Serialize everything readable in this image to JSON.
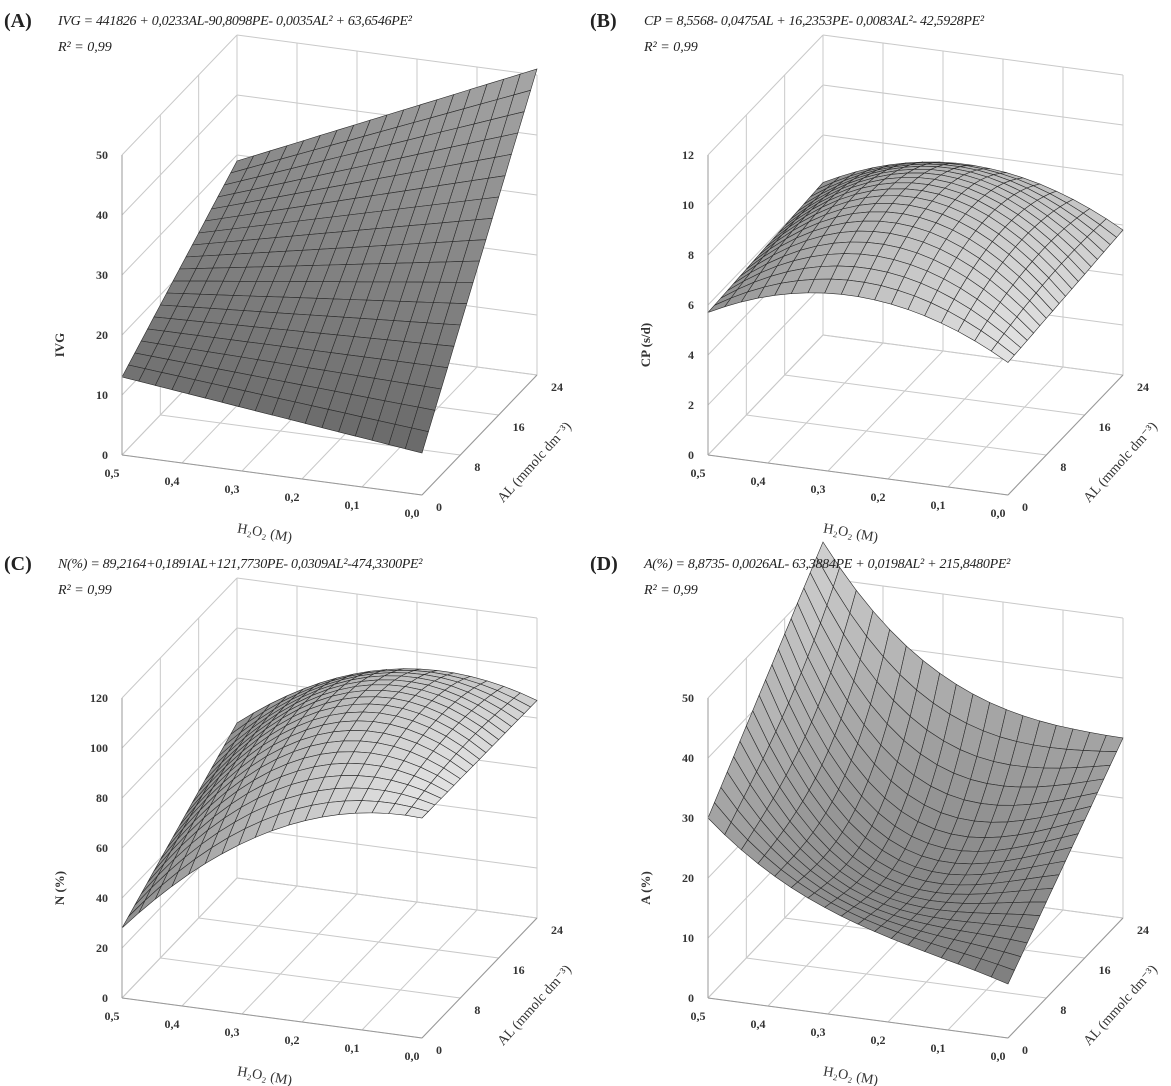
{
  "chart_data": [
    {
      "type": "surface",
      "panel_label": "(A)",
      "equation": "IVG = 441826 + 0,0233AL-90,8098PE- 0,0035AL² + 63,6546PE²",
      "r_squared": "R² = 0,99",
      "zlabel": "IVG",
      "xlabel": "H₂O₂ (M)",
      "ylabel": "AL (mmolc dm⁻³)",
      "x_ticks": [
        "0,5",
        "0,4",
        "0,3",
        "0,2",
        "0,1",
        "0,0"
      ],
      "y_ticks": [
        "0",
        "8",
        "16",
        "24"
      ],
      "z_ticks": [
        "0",
        "10",
        "20",
        "30",
        "40",
        "50"
      ],
      "xlim": [
        0,
        0.5
      ],
      "ylim": [
        0,
        24
      ],
      "zlim": [
        0,
        50
      ],
      "corners": {
        "x0_y0": 7,
        "x05_y0": 13,
        "x0_y24": 51,
        "x05_y24": 29
      },
      "shade": "dark"
    },
    {
      "type": "surface",
      "panel_label": "(B)",
      "equation": "CP = 8,5568- 0,0475AL + 16,2353PE- 0,0083AL²- 42,5928PE²",
      "r_squared": "R² = 0,99",
      "zlabel": "CP (s/d)",
      "xlabel": "H₂O₂ (M)",
      "ylabel": "AL (mmolc dm⁻³)",
      "x_ticks": [
        "0,5",
        "0,4",
        "0,3",
        "0,2",
        "0,1",
        "0,0"
      ],
      "y_ticks": [
        "0",
        "8",
        "16",
        "24"
      ],
      "z_ticks": [
        "0",
        "2",
        "4",
        "6",
        "8",
        "10",
        "12"
      ],
      "xlim": [
        0,
        0.5
      ],
      "ylim": [
        0,
        24
      ],
      "zlim": [
        0,
        12
      ],
      "corners": {
        "x0_y0": 5.3,
        "x05_y0": 5.7,
        "x0_y24": 5.8,
        "x05_y24": 6.1
      },
      "peak": 8.7,
      "shade": "light"
    },
    {
      "type": "surface",
      "panel_label": "(C)",
      "equation": "N(%) = 89,2164+0,1891AL+121,7730PE- 0,0309AL²-474,3300PE²",
      "r_squared": "R² = 0,99",
      "zlabel": "N (%)",
      "xlabel": "H₂O₂ (M)",
      "ylabel": "AL (mmolc dm⁻³)",
      "x_ticks": [
        "0,5",
        "0,4",
        "0,3",
        "0,2",
        "0,1",
        "0,0"
      ],
      "y_ticks": [
        "0",
        "8",
        "16",
        "24"
      ],
      "z_ticks": [
        "0",
        "20",
        "40",
        "60",
        "80",
        "100",
        "120"
      ],
      "xlim": [
        0,
        0.5
      ],
      "ylim": [
        0,
        24
      ],
      "zlim": [
        0,
        120
      ],
      "corners": {
        "x0_y0": 88,
        "x05_y0": 28,
        "x0_y24": 87,
        "x05_y24": 62
      },
      "peak": 97,
      "shade": "light"
    },
    {
      "type": "surface",
      "panel_label": "(D)",
      "equation": "A(%) = 8,8735- 0,0026AL- 63,3884PE + 0,0198AL² + 215,8480PE²",
      "r_squared": "R² = 0,99",
      "zlabel": "A (%)",
      "xlabel": "H₂O₂ (M)",
      "ylabel": "AL (mmolc dm⁻³)",
      "x_ticks": [
        "0,5",
        "0,4",
        "0,3",
        "0,2",
        "0,1",
        "0,0"
      ],
      "y_ticks": [
        "0",
        "8",
        "16",
        "24"
      ],
      "z_ticks": [
        "0",
        "10",
        "20",
        "30",
        "40",
        "50"
      ],
      "xlim": [
        0,
        0.5
      ],
      "ylim": [
        0,
        24
      ],
      "zlim": [
        0,
        50
      ],
      "corners": {
        "x0_y0": 9,
        "x05_y0": 30,
        "x0_y24": 30,
        "x05_y24": 56
      },
      "valley": 2,
      "shade": "mixed"
    }
  ]
}
